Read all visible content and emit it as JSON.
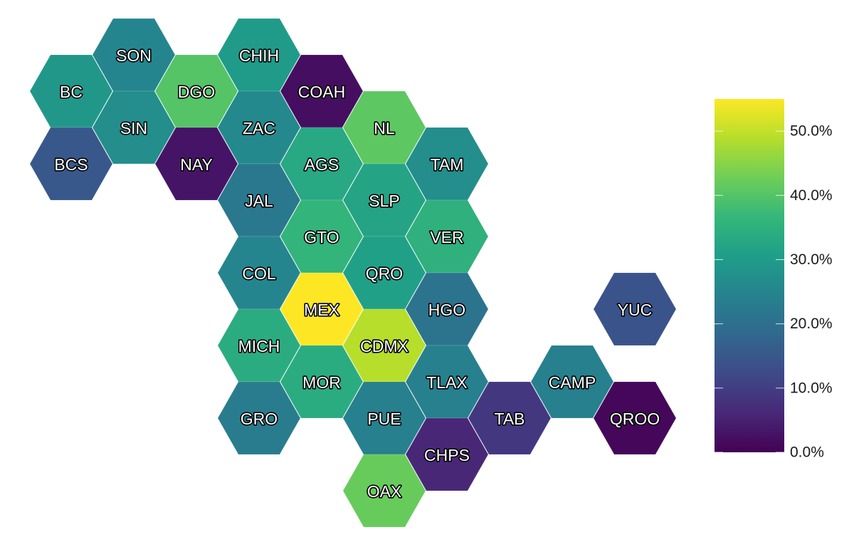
{
  "chart_data": {
    "type": "heatmap",
    "map_style": "hexagon-tile-map",
    "value_format": "percent",
    "title": "",
    "regions": [
      {
        "code": "SON",
        "col": 1,
        "row": 0,
        "value": 25
      },
      {
        "code": "CHIH",
        "col": 3,
        "row": 0,
        "value": 30
      },
      {
        "code": "BC",
        "col": 0,
        "row": 1,
        "value": 29
      },
      {
        "code": "DGO",
        "col": 2,
        "row": 1,
        "value": 40
      },
      {
        "code": "COAH",
        "col": 4,
        "row": 1,
        "value": 2
      },
      {
        "code": "SIN",
        "col": 1,
        "row": 2,
        "value": 27
      },
      {
        "code": "ZAC",
        "col": 3,
        "row": 2,
        "value": 26
      },
      {
        "code": "NL",
        "col": 5,
        "row": 2,
        "value": 41
      },
      {
        "code": "BCS",
        "col": 0,
        "row": 3,
        "value": 15
      },
      {
        "code": "NAY",
        "col": 2,
        "row": 3,
        "value": 3
      },
      {
        "code": "AGS",
        "col": 4,
        "row": 3,
        "value": 33
      },
      {
        "code": "TAM",
        "col": 6,
        "row": 3,
        "value": 27
      },
      {
        "code": "JAL",
        "col": 3,
        "row": 4,
        "value": 22
      },
      {
        "code": "SLP",
        "col": 5,
        "row": 4,
        "value": 32
      },
      {
        "code": "GTO",
        "col": 4,
        "row": 5,
        "value": 36
      },
      {
        "code": "VER",
        "col": 6,
        "row": 5,
        "value": 35
      },
      {
        "code": "COL",
        "col": 3,
        "row": 6,
        "value": 25
      },
      {
        "code": "QRO",
        "col": 5,
        "row": 6,
        "value": 31
      },
      {
        "code": "MEX",
        "col": 4,
        "row": 7,
        "value": 55
      },
      {
        "code": "HGO",
        "col": 6,
        "row": 7,
        "value": 21
      },
      {
        "code": "YUC",
        "col": 9,
        "row": 7,
        "value": 14
      },
      {
        "code": "MICH",
        "col": 3,
        "row": 8,
        "value": 34
      },
      {
        "code": "CDMX",
        "col": 5,
        "row": 8,
        "value": 49
      },
      {
        "code": "MOR",
        "col": 4,
        "row": 9,
        "value": 34
      },
      {
        "code": "TLAX",
        "col": 6,
        "row": 9,
        "value": 24
      },
      {
        "code": "CAMP",
        "col": 8,
        "row": 9,
        "value": 24
      },
      {
        "code": "GRO",
        "col": 3,
        "row": 10,
        "value": 23
      },
      {
        "code": "PUE",
        "col": 5,
        "row": 10,
        "value": 24
      },
      {
        "code": "TAB",
        "col": 7,
        "row": 10,
        "value": 9
      },
      {
        "code": "QROO",
        "col": 9,
        "row": 10,
        "value": 1
      },
      {
        "code": "CHPS",
        "col": 6,
        "row": 11,
        "value": 6
      },
      {
        "code": "OAX",
        "col": 5,
        "row": 12,
        "value": 42
      }
    ],
    "color_scale": {
      "name": "viridis",
      "stops": [
        "#440154",
        "#482878",
        "#3e4a89",
        "#31688e",
        "#26828e",
        "#1f9e89",
        "#35b779",
        "#6ece58",
        "#b5de2b",
        "#fde725"
      ],
      "domain": [
        0,
        55
      ]
    },
    "legend": {
      "placement": "right",
      "ticks": [
        {
          "value": 0,
          "label": "0.0%"
        },
        {
          "value": 10,
          "label": "10.0%"
        },
        {
          "value": 20,
          "label": "20.0%"
        },
        {
          "value": 30,
          "label": "30.0%"
        },
        {
          "value": 40,
          "label": "40.0%"
        },
        {
          "value": 50,
          "label": "50.0%"
        }
      ]
    }
  }
}
